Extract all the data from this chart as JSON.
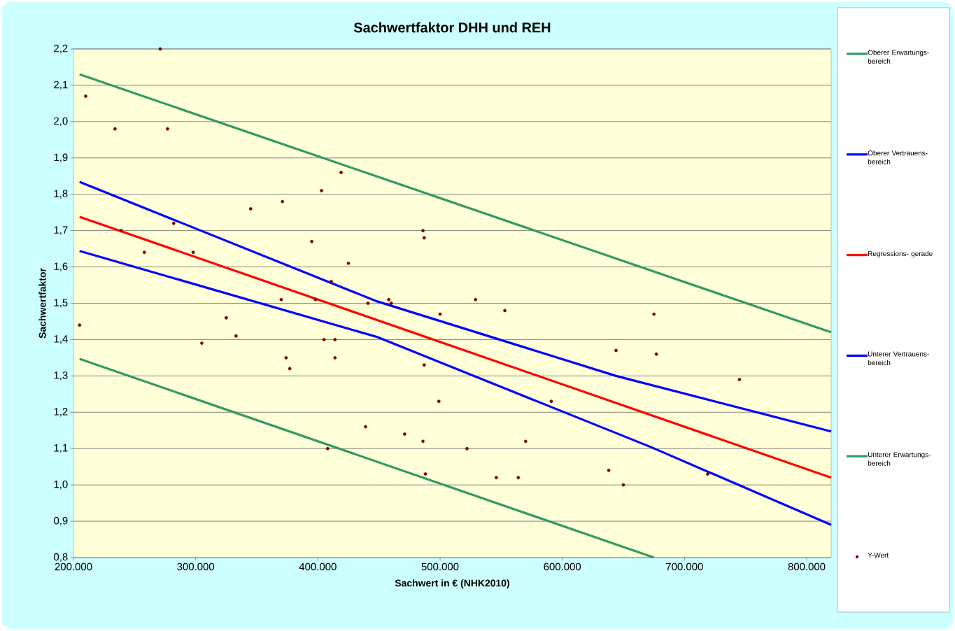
{
  "chart_data": {
    "type": "scatter",
    "title": "Sachwertfaktor DHH und REH",
    "xlabel": "Sachwert in € (NHK2010)",
    "ylabel": "Sachwertfaktor",
    "xlim": [
      200000,
      820000
    ],
    "ylim": [
      0.8,
      2.2
    ],
    "xticks": [
      {
        "value": 200000,
        "label": "200.000"
      },
      {
        "value": 300000,
        "label": "300.000"
      },
      {
        "value": 400000,
        "label": "400.000"
      },
      {
        "value": 500000,
        "label": "500.000"
      },
      {
        "value": 600000,
        "label": "600.000"
      },
      {
        "value": 700000,
        "label": "700.000"
      },
      {
        "value": 800000,
        "label": "800.000"
      }
    ],
    "yticks": [
      {
        "value": 0.8,
        "label": "0,8"
      },
      {
        "value": 0.9,
        "label": "0,9"
      },
      {
        "value": 1.0,
        "label": "1,0"
      },
      {
        "value": 1.1,
        "label": "1,1"
      },
      {
        "value": 1.2,
        "label": "1,2"
      },
      {
        "value": 1.3,
        "label": "1,3"
      },
      {
        "value": 1.4,
        "label": "1,4"
      },
      {
        "value": 1.5,
        "label": "1,5"
      },
      {
        "value": 1.6,
        "label": "1,6"
      },
      {
        "value": 1.7,
        "label": "1,7"
      },
      {
        "value": 1.8,
        "label": "1,8"
      },
      {
        "value": 1.9,
        "label": "1,9"
      },
      {
        "value": 2.0,
        "label": "2,0"
      },
      {
        "value": 2.1,
        "label": "2,1"
      },
      {
        "value": 2.2,
        "label": "2,2"
      }
    ],
    "grid": "y",
    "legend": "right",
    "series": [
      {
        "name": "Oberer Erwartungs- bereich",
        "type": "line",
        "marker": "none",
        "color": "#339966",
        "x": [
          205000,
          820000
        ],
        "values": [
          2.13,
          1.42
        ]
      },
      {
        "name": "Oberer Vertrauens- bereich",
        "type": "line",
        "marker": "none",
        "color": "#0000ff",
        "x": [
          205000,
          448600,
          644000,
          820000
        ],
        "values": [
          1.834,
          1.505,
          1.3,
          1.147
        ]
      },
      {
        "name": "Regressions- gerade",
        "type": "line",
        "marker": "none",
        "color": "#ff0000",
        "x": [
          205000,
          820000
        ],
        "values": [
          1.738,
          1.02
        ]
      },
      {
        "name": "Unterer Vertrauens- bereich",
        "type": "line",
        "marker": "none",
        "color": "#0000ff",
        "x": [
          205000,
          448600,
          672600,
          820000
        ],
        "values": [
          1.644,
          1.407,
          1.104,
          0.89
        ]
      },
      {
        "name": "Unterer Erwartungs- bereich",
        "type": "line",
        "marker": "none",
        "color": "#339966",
        "x": [
          205000,
          675000
        ],
        "values": [
          1.347,
          0.8
        ]
      },
      {
        "name": "Y-Wert",
        "marker": "circle",
        "color": "#800000",
        "x": [
          205000,
          210000,
          234000,
          271000,
          239000,
          277000,
          282000,
          258000,
          298000,
          305000,
          325000,
          333000,
          345000,
          371000,
          370000,
          374000,
          377000,
          395000,
          398000,
          403000,
          405000,
          408000,
          411000,
          414000,
          414000,
          419000,
          425000,
          441000,
          439000,
          458000,
          460000,
          471000,
          486000,
          487000,
          487000,
          486000,
          488000,
          499000,
          500000,
          522000,
          529000,
          546000,
          553000,
          564000,
          570000,
          591000,
          638000,
          644000,
          650000,
          675000,
          677000,
          719000,
          745000
        ],
        "values": [
          1.44,
          2.07,
          1.98,
          2.2,
          1.7,
          1.98,
          1.72,
          1.64,
          1.64,
          1.39,
          1.46,
          1.41,
          1.76,
          1.78,
          1.51,
          1.35,
          1.32,
          1.67,
          1.51,
          1.81,
          1.4,
          1.1,
          1.56,
          1.4,
          1.35,
          1.86,
          1.61,
          1.5,
          1.16,
          1.51,
          1.5,
          1.14,
          1.7,
          1.68,
          1.33,
          1.12,
          1.03,
          1.23,
          1.47,
          1.1,
          1.51,
          1.02,
          1.48,
          1.02,
          1.12,
          1.23,
          1.04,
          1.37,
          1.0,
          1.47,
          1.36,
          1.03,
          1.29
        ]
      }
    ]
  }
}
